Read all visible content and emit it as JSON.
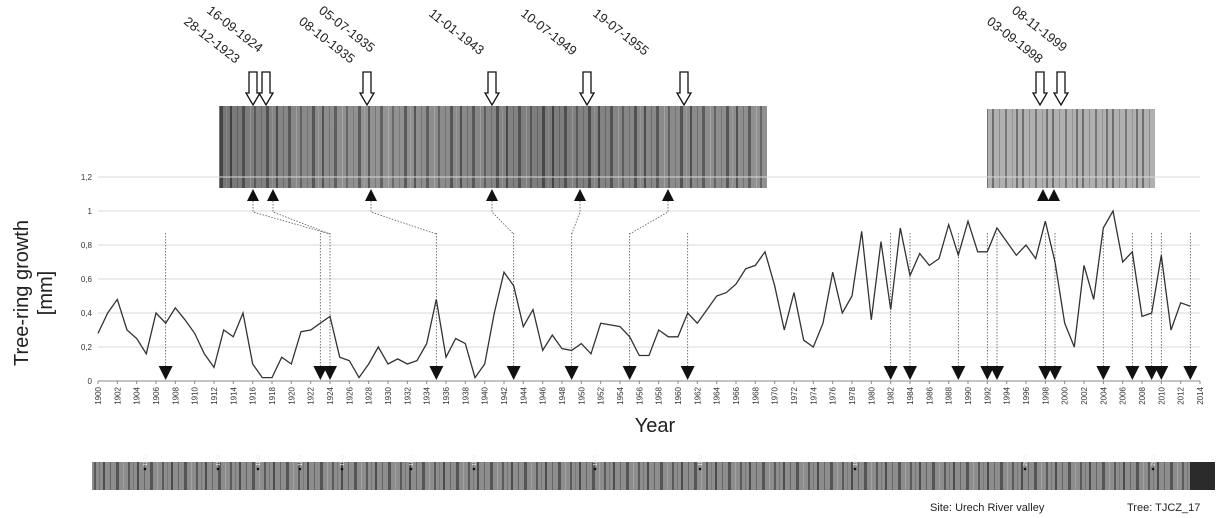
{
  "chart_data": {
    "type": "line",
    "title": "",
    "xlabel": "Year",
    "ylabel": "Tree-ring growth [mm]",
    "ylabel_lines": [
      "Tree-ring growth",
      "[mm]"
    ],
    "xlim": [
      1900,
      2014
    ],
    "ylim": [
      0,
      1.2
    ],
    "y_ticks": [
      "0",
      "0,2",
      "0,4",
      "0,6",
      "0,8",
      "1",
      "1,2"
    ],
    "x_ticks": [
      1900,
      1902,
      1904,
      1906,
      1908,
      1910,
      1912,
      1914,
      1916,
      1918,
      1920,
      1922,
      1924,
      1926,
      1928,
      1930,
      1932,
      1934,
      1936,
      1938,
      1940,
      1942,
      1944,
      1946,
      1948,
      1950,
      1952,
      1954,
      1956,
      1958,
      1960,
      1962,
      1964,
      1966,
      1968,
      1970,
      1972,
      1974,
      1976,
      1978,
      1980,
      1982,
      1984,
      1986,
      1988,
      1990,
      1992,
      1994,
      1996,
      1998,
      2000,
      2002,
      2004,
      2006,
      2008,
      2010,
      2012,
      2014
    ],
    "grid": true,
    "series": [
      {
        "name": "",
        "x": [
          1900,
          1901,
          1902,
          1903,
          1904,
          1905,
          1906,
          1907,
          1908,
          1909,
          1910,
          1911,
          1912,
          1913,
          1914,
          1915,
          1916,
          1917,
          1918,
          1919,
          1920,
          1921,
          1922,
          1923,
          1924,
          1925,
          1926,
          1927,
          1928,
          1929,
          1930,
          1931,
          1932,
          1933,
          1934,
          1935,
          1936,
          1937,
          1938,
          1939,
          1940,
          1941,
          1942,
          1943,
          1944,
          1945,
          1946,
          1947,
          1948,
          1949,
          1950,
          1951,
          1952,
          1953,
          1954,
          1955,
          1956,
          1957,
          1958,
          1959,
          1960,
          1961,
          1962,
          1963,
          1964,
          1965,
          1966,
          1967,
          1968,
          1969,
          1970,
          1971,
          1972,
          1973,
          1974,
          1975,
          1976,
          1977,
          1978,
          1979,
          1980,
          1981,
          1982,
          1983,
          1984,
          1985,
          1986,
          1987,
          1988,
          1989,
          1990,
          1991,
          1992,
          1993,
          1994,
          1995,
          1996,
          1997,
          1998,
          1999,
          2000,
          2001,
          2002,
          2003,
          2004,
          2005,
          2006,
          2007,
          2008,
          2009,
          2010,
          2011,
          2012,
          2013
        ],
        "values": [
          0.28,
          0.4,
          0.48,
          0.3,
          0.25,
          0.16,
          0.4,
          0.34,
          0.43,
          0.36,
          0.28,
          0.16,
          0.08,
          0.3,
          0.26,
          0.4,
          0.1,
          0.02,
          0.02,
          0.14,
          0.1,
          0.29,
          0.3,
          0.34,
          0.38,
          0.14,
          0.12,
          0.02,
          0.1,
          0.2,
          0.1,
          0.13,
          0.1,
          0.12,
          0.22,
          0.48,
          0.14,
          0.25,
          0.22,
          0.02,
          0.1,
          0.4,
          0.64,
          0.56,
          0.32,
          0.42,
          0.18,
          0.27,
          0.19,
          0.18,
          0.22,
          0.16,
          0.34,
          0.33,
          0.32,
          0.26,
          0.15,
          0.15,
          0.3,
          0.26,
          0.26,
          0.4,
          0.34,
          0.42,
          0.5,
          0.52,
          0.57,
          0.66,
          0.68,
          0.76,
          0.56,
          0.3,
          0.52,
          0.24,
          0.2,
          0.34,
          0.64,
          0.4,
          0.5,
          0.88,
          0.36,
          0.82,
          0.42,
          0.9,
          0.62,
          0.75,
          0.68,
          0.72,
          0.92,
          0.74,
          0.94,
          0.76,
          0.76,
          0.9,
          0.82,
          0.74,
          0.8,
          0.72,
          0.94,
          0.7,
          0.34,
          0.2,
          0.68,
          0.48,
          0.9,
          1.0,
          0.7,
          0.76,
          0.38,
          0.4,
          0.74,
          0.3,
          0.46,
          0.44
        ]
      }
    ],
    "marker_years": [
      1907,
      1923,
      1924,
      1935,
      1943,
      1949,
      1955,
      1961,
      1982,
      1984,
      1989,
      1992,
      1993,
      1998,
      1999,
      2004,
      2007,
      2009,
      2010,
      2013
    ],
    "event_dates": [
      {
        "label": "16-09-1924"
      },
      {
        "label": "28-12-1923"
      },
      {
        "label": "05-07-1935"
      },
      {
        "label": "08-10-1935"
      },
      {
        "label": "11-01-1943"
      },
      {
        "label": "10-07-1949"
      },
      {
        "label": "19-07-1955"
      },
      {
        "label": "08-11-1999"
      },
      {
        "label": "03-09-1998"
      }
    ],
    "core_decades": [
      "1900",
      "1910",
      "1920",
      "1930",
      "1940",
      "1950",
      "1960",
      "1970",
      "1980",
      "1990",
      "2000",
      "2010"
    ]
  },
  "footer": {
    "site": "Site: Urech River valley",
    "tree": "Tree: TJCZ_17"
  },
  "colors": {
    "line": "#333333",
    "grid": "#d9d9d9",
    "wood_dark": "#5a5a5a",
    "wood_light": "#9a9a9a",
    "marker": "#111111"
  }
}
